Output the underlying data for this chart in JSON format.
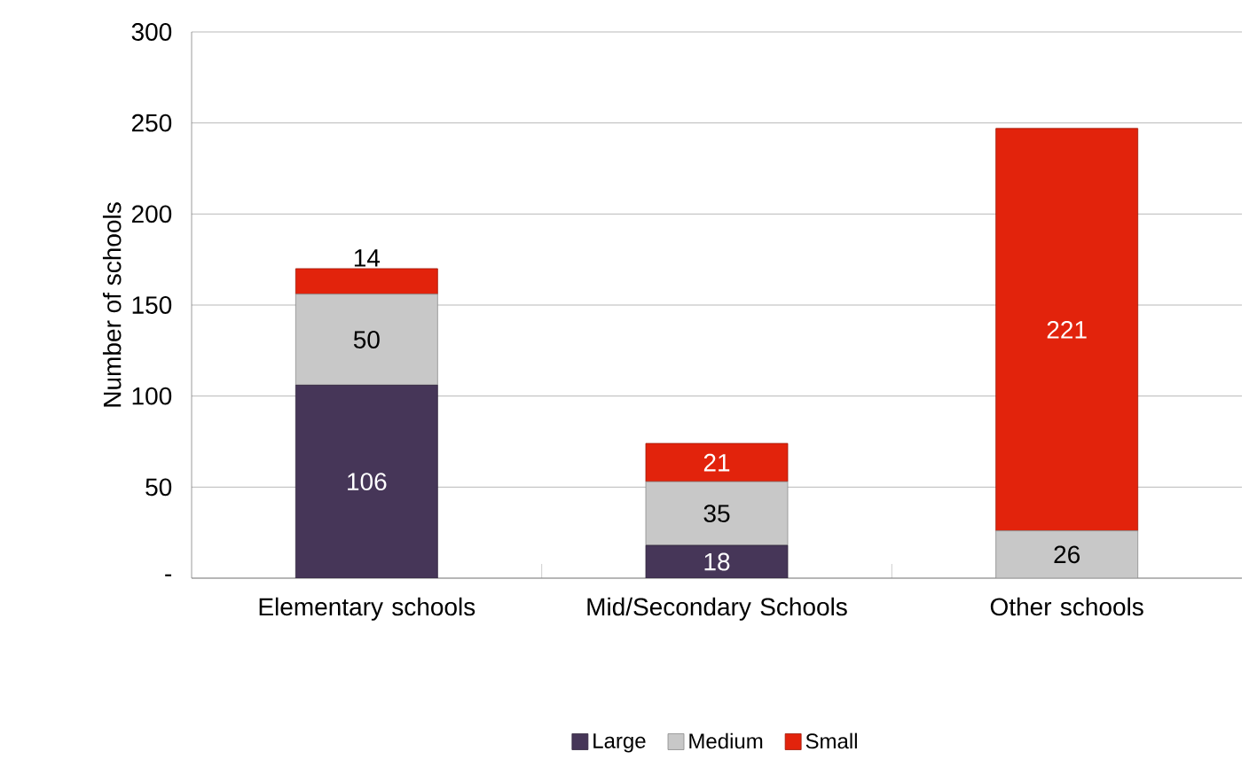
{
  "chart_data": {
    "type": "bar",
    "stacked": true,
    "ylabel": "Number of schools",
    "categories": [
      "Elementary schools",
      "Mid/Secondary Schools",
      "Other schools"
    ],
    "series": [
      {
        "name": "Large",
        "color": "#463658",
        "values": [
          106,
          18,
          0
        ],
        "value_labels": [
          "106",
          "18",
          null
        ]
      },
      {
        "name": "Medium",
        "color": "#c8c8c8",
        "values": [
          50,
          35,
          26
        ],
        "value_labels": [
          "50",
          "35",
          "26"
        ]
      },
      {
        "name": "Small",
        "color": "#e2230c",
        "values": [
          14,
          21,
          221
        ],
        "value_labels": [
          "14",
          "21",
          "221"
        ]
      }
    ],
    "ylim": [
      0,
      300
    ],
    "yticks": [
      {
        "value": 0,
        "label": "-"
      },
      50,
      100,
      150,
      200,
      250,
      300
    ],
    "grid": "y",
    "legend": "bottom"
  }
}
